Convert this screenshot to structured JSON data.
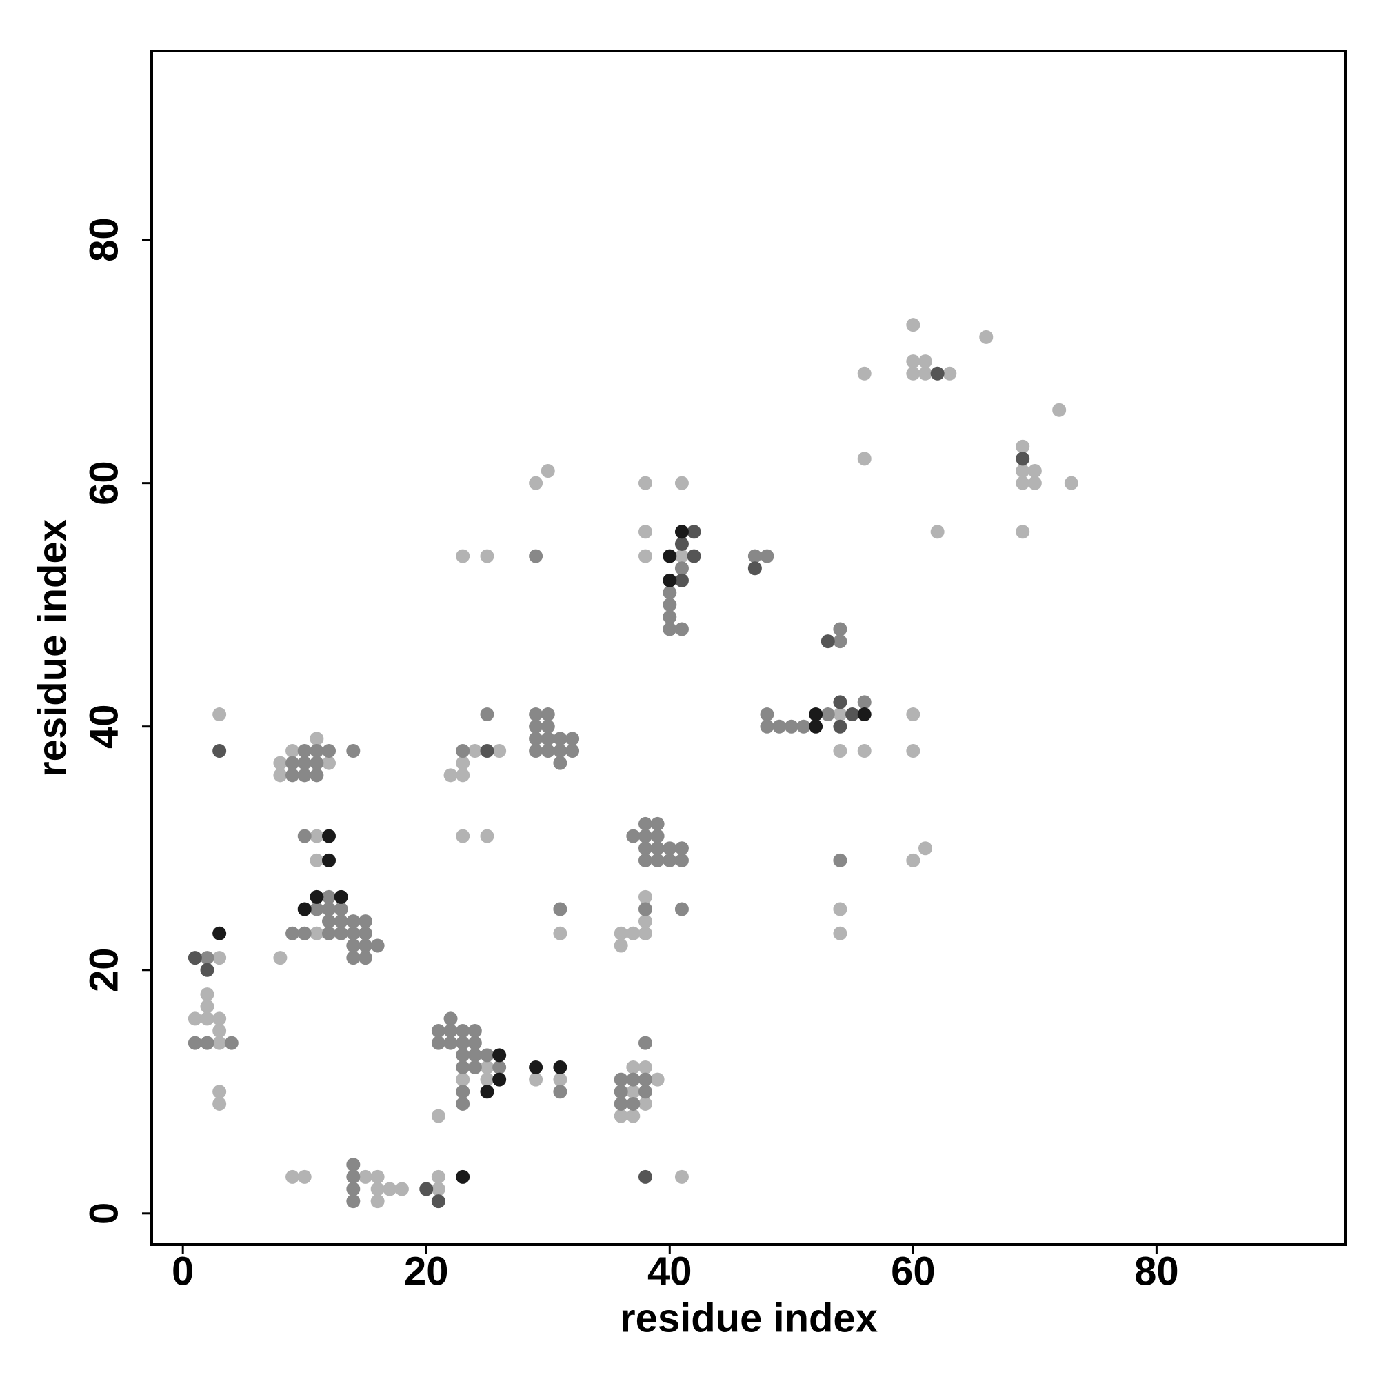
{
  "chart_data": {
    "type": "scatter",
    "x_label": "residue index",
    "y_label": "residue index",
    "xlim": [
      -2.56,
      95.5
    ],
    "ylim": [
      -2.56,
      95.5
    ],
    "xticks": [
      0,
      20,
      40,
      60,
      80
    ],
    "yticks": [
      0,
      20,
      40,
      60,
      80
    ],
    "series": [
      {
        "color": "#b3b3b3",
        "x": [
          60,
          66,
          60,
          61,
          56,
          60,
          61,
          63,
          72,
          69,
          56,
          69,
          70,
          29,
          30,
          38,
          41,
          69,
          70,
          73,
          62,
          69,
          38,
          23,
          25,
          38,
          41,
          3,
          54,
          60,
          11,
          9,
          24,
          26,
          54,
          56,
          60,
          8,
          12,
          23,
          8,
          22,
          23,
          11,
          23,
          25,
          61,
          11,
          60,
          38,
          54,
          38,
          11,
          31,
          36,
          37,
          38,
          54,
          36,
          3,
          8,
          2,
          2,
          1,
          2,
          3,
          3,
          3,
          25,
          37,
          38,
          23,
          25,
          29,
          31,
          39,
          3,
          37,
          3,
          38,
          21,
          36,
          37,
          9,
          10,
          15,
          16,
          21,
          41,
          16,
          17,
          18,
          21,
          16
        ],
        "y": [
          73,
          72,
          70,
          70,
          69,
          69,
          69,
          69,
          66,
          63,
          62,
          61,
          61,
          60,
          61,
          60,
          60,
          60,
          60,
          60,
          56,
          56,
          56,
          54,
          54,
          54,
          54,
          41,
          41,
          41,
          39,
          38,
          38,
          38,
          38,
          38,
          38,
          37,
          37,
          37,
          36,
          36,
          36,
          31,
          31,
          31,
          30,
          29,
          29,
          26,
          25,
          24,
          23,
          23,
          23,
          23,
          23,
          23,
          22,
          21,
          21,
          18,
          17,
          16,
          16,
          16,
          15,
          14,
          12,
          12,
          12,
          11,
          11,
          11,
          11,
          11,
          10,
          10,
          9,
          9,
          8,
          8,
          8,
          3,
          3,
          3,
          3,
          3,
          3,
          2,
          2,
          2,
          2,
          1
        ]
      },
      {
        "color": "#888888",
        "x": [
          29,
          47,
          48,
          41,
          40,
          40,
          40,
          40,
          41,
          54,
          54,
          25,
          29,
          30,
          48,
          53,
          56,
          29,
          30,
          48,
          49,
          50,
          51,
          29,
          30,
          31,
          32,
          10,
          11,
          12,
          14,
          23,
          29,
          30,
          31,
          32,
          9,
          10,
          11,
          31,
          9,
          10,
          11,
          38,
          39,
          10,
          37,
          38,
          39,
          38,
          39,
          40,
          41,
          38,
          39,
          40,
          41,
          54,
          12,
          11,
          12,
          13,
          31,
          38,
          41,
          12,
          13,
          14,
          15,
          9,
          10,
          12,
          13,
          14,
          15,
          14,
          15,
          16,
          2,
          14,
          15,
          22,
          21,
          22,
          23,
          24,
          1,
          2,
          4,
          21,
          22,
          23,
          24,
          38,
          23,
          24,
          25,
          23,
          24,
          26,
          36,
          37,
          38,
          23,
          31,
          36,
          38,
          23,
          36,
          37,
          14,
          14,
          14,
          14
        ],
        "y": [
          54,
          54,
          54,
          53,
          51,
          50,
          49,
          48,
          48,
          48,
          47,
          41,
          41,
          41,
          41,
          41,
          42,
          40,
          40,
          40,
          40,
          40,
          40,
          39,
          39,
          39,
          39,
          38,
          38,
          38,
          38,
          38,
          38,
          38,
          38,
          38,
          37,
          37,
          37,
          37,
          36,
          36,
          36,
          32,
          32,
          31,
          31,
          31,
          31,
          30,
          30,
          30,
          30,
          29,
          29,
          29,
          29,
          29,
          26,
          25,
          25,
          25,
          25,
          25,
          25,
          24,
          24,
          24,
          24,
          23,
          23,
          23,
          23,
          23,
          23,
          22,
          22,
          22,
          21,
          21,
          21,
          16,
          15,
          15,
          15,
          15,
          14,
          14,
          14,
          14,
          14,
          14,
          14,
          14,
          13,
          13,
          13,
          12,
          12,
          12,
          11,
          11,
          11,
          10,
          10,
          10,
          10,
          9,
          9,
          9,
          4,
          3,
          2,
          1
        ]
      },
      {
        "color": "#555555",
        "x": [
          62,
          69,
          42,
          41,
          42,
          47,
          41,
          53,
          55,
          54,
          54,
          3,
          25,
          1,
          2,
          38,
          20,
          21
        ],
        "y": [
          69,
          62,
          56,
          55,
          54,
          53,
          52,
          47,
          41,
          42,
          40,
          38,
          38,
          21,
          20,
          3,
          2,
          1
        ]
      },
      {
        "color": "#1a1a1a",
        "x": [
          41,
          40,
          40,
          52,
          56,
          52,
          12,
          12,
          11,
          13,
          10,
          3,
          26,
          29,
          31,
          26,
          25,
          23
        ],
        "y": [
          56,
          54,
          52,
          41,
          41,
          40,
          31,
          29,
          26,
          26,
          25,
          23,
          13,
          12,
          12,
          11,
          10,
          3
        ]
      }
    ]
  }
}
